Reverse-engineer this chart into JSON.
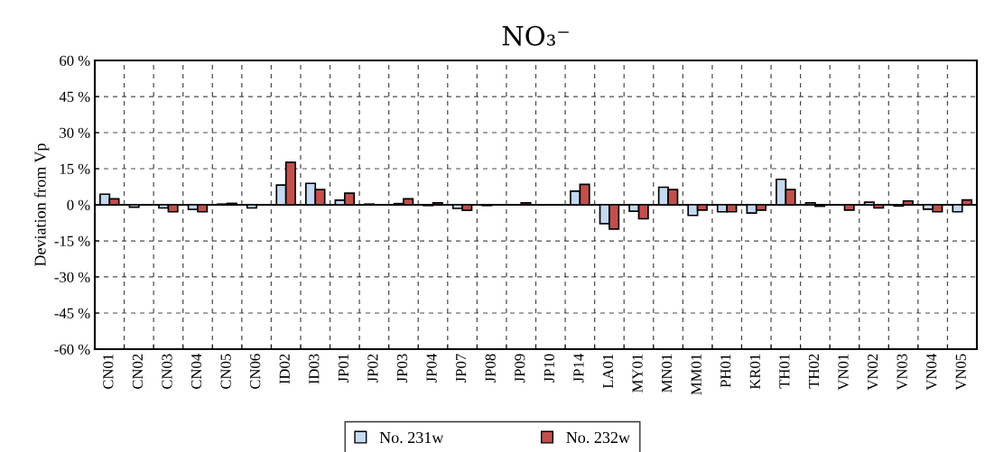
{
  "chart_data": {
    "type": "bar",
    "title": "NO₃⁻",
    "ylabel": "Deviation from Vp",
    "categories": [
      "CN01",
      "CN02",
      "CN03",
      "CN04",
      "CN05",
      "CN06",
      "ID02",
      "ID03",
      "JP01",
      "JP02",
      "JP03",
      "JP04",
      "JP07",
      "JP08",
      "JP09",
      "JP10",
      "JP14",
      "LA01",
      "MY01",
      "MN01",
      "MM01",
      "PH01",
      "KR01",
      "TH01",
      "TH02",
      "VN01",
      "VN02",
      "VN03",
      "VN04",
      "VN05"
    ],
    "series": [
      {
        "name": "No. 231w",
        "color": "#c5d9f1",
        "values": [
          4.4,
          -1.0,
          -1.3,
          -1.9,
          0.3,
          -1.3,
          8.2,
          8.9,
          1.9,
          0.3,
          0.5,
          -0.3,
          -1.5,
          -0.3,
          null,
          null,
          5.7,
          -7.8,
          -2.7,
          7.3,
          -4.4,
          -2.9,
          -3.4,
          10.6,
          0.8,
          null,
          1.1,
          -0.5,
          -1.8,
          -2.9
        ]
      },
      {
        "name": "No. 232w",
        "color": "#c0504d",
        "values": [
          2.5,
          null,
          -2.9,
          -2.9,
          0.6,
          null,
          17.7,
          6.3,
          4.8,
          null,
          2.5,
          0.8,
          -2.3,
          null,
          0.8,
          null,
          8.5,
          -10.1,
          -5.8,
          6.3,
          -2.2,
          -2.9,
          -2.2,
          6.3,
          -0.6,
          -2.2,
          -1.3,
          1.6,
          -2.9,
          2.0
        ]
      }
    ],
    "ylim": [
      -60,
      60
    ],
    "yticks": [
      {
        "value": -60,
        "label": "-60 %"
      },
      {
        "value": -45,
        "label": "-45 %"
      },
      {
        "value": -30,
        "label": "-30 %"
      },
      {
        "value": -15,
        "label": "-15 %"
      },
      {
        "value": 0,
        "label": "0 %"
      },
      {
        "value": 15,
        "label": "15 %"
      },
      {
        "value": 30,
        "label": "30 %"
      },
      {
        "value": 45,
        "label": "45 %"
      },
      {
        "value": 60,
        "label": "60 %"
      }
    ],
    "grid": true,
    "legend": "bottom"
  }
}
